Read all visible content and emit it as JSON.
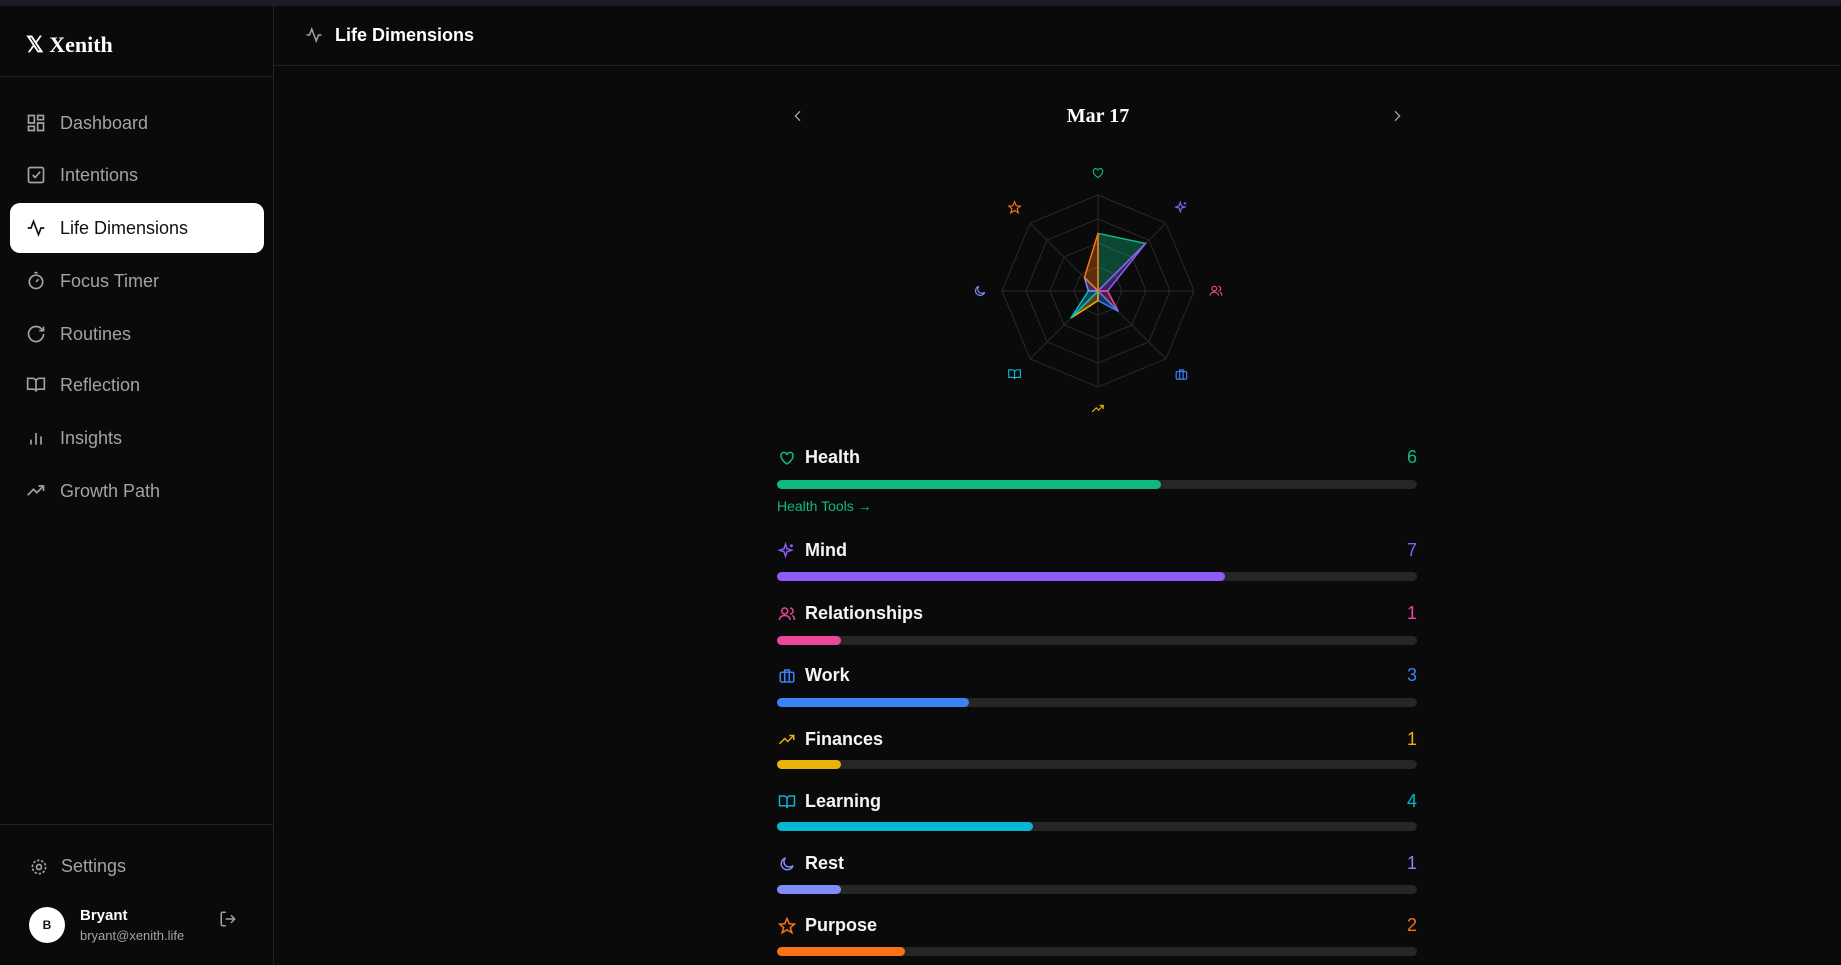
{
  "app": {
    "brand": "Xenith",
    "nav": [
      "Dashboard",
      "Intentions",
      "Life Dimensions",
      "Focus Timer",
      "Routines",
      "Reflection",
      "Insights",
      "Growth Path"
    ],
    "active": 2,
    "settings": "Settings",
    "user": {
      "initial": "B",
      "name": "Bryant",
      "email": "bryant@xenith.life"
    }
  },
  "header": {
    "title": "Life Dimensions"
  },
  "date": "Mar 17",
  "scale": [
    0,
    10
  ],
  "dimensions": [
    {
      "name": "Health",
      "score": 6,
      "color": "#10b981",
      "link": "Health Tools →"
    },
    {
      "name": "Mind",
      "score": 7,
      "color": "#8b5cf6"
    },
    {
      "name": "Relationships",
      "score": 1,
      "color": "#ec4899"
    },
    {
      "name": "Work",
      "score": 3,
      "color": "#3b82f6"
    },
    {
      "name": "Finances",
      "score": 1,
      "color": "#eab308"
    },
    {
      "name": "Learning",
      "score": 4,
      "color": "#06b6d4"
    },
    {
      "name": "Rest",
      "score": 1,
      "color": "#818cf8"
    },
    {
      "name": "Purpose",
      "score": 2,
      "color": "#f97316"
    }
  ]
}
